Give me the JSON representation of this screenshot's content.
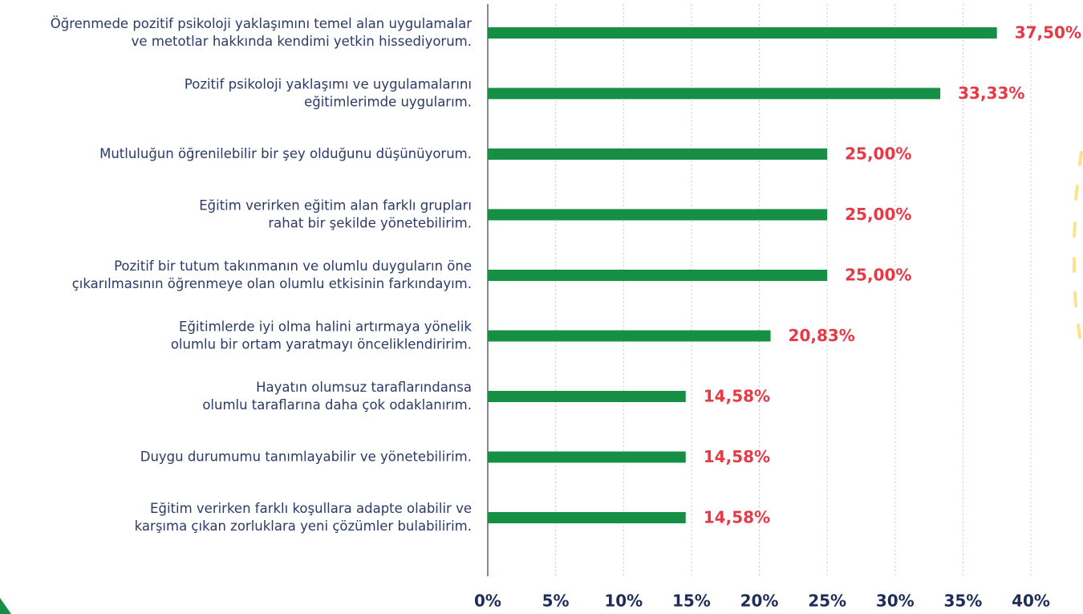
{
  "chart_data": {
    "type": "bar",
    "orientation": "horizontal",
    "categories": [
      "Öğrenmede pozitif psikoloji yaklaşımını temel alan uygulamalar\nve metotlar hakkında kendimi yetkin hissediyorum.",
      "Pozitif psikoloji yaklaşımı ve uygulamalarını\neğitimlerimde uygularım.",
      "Mutluluğun öğrenilebilir bir şey olduğunu düşünüyorum.",
      "Eğitim verirken eğitim alan farklı grupları\nrahat bir şekilde yönetebilirim.",
      "Pozitif bir tutum takınmanın ve olumlu duyguların öne\nçıkarılmasının öğrenmeye olan olumlu etkisinin farkındayım.",
      "Eğitimlerde iyi olma halini artırmaya yönelik\nolumlu bir ortam yaratmayı önceliklendiririm.",
      "Hayatın olumsuz taraflarındansa\nolumlu taraflarına daha çok odaklanırım.",
      "Duygu durumumu tanımlayabilir ve yönetebilirim.",
      "Eğitim verirken farklı koşullara adapte olabilir ve\nkarşıma çıkan zorluklara yeni çözümler bulabilirim."
    ],
    "values": [
      37.5,
      33.33,
      25,
      25,
      25,
      20.83,
      14.58,
      14.58,
      14.58
    ],
    "value_labels": [
      "37,50%",
      "33,33%",
      "25,00%",
      "25,00%",
      "25,00%",
      "20,83%",
      "14,58%",
      "14,58%",
      "14,58%"
    ],
    "color": "#168f45",
    "xlim": [
      0,
      40
    ],
    "xticks": [
      {
        "value": 0,
        "label": "0%"
      },
      {
        "value": 5,
        "label": "5%"
      },
      {
        "value": 10,
        "label": "10%"
      },
      {
        "value": 15,
        "label": "15%"
      },
      {
        "value": 20,
        "label": "20%"
      },
      {
        "value": 25,
        "label": "25%"
      },
      {
        "value": 30,
        "label": "30%"
      },
      {
        "value": 35,
        "label": "35%"
      },
      {
        "value": 40,
        "label": "40%"
      }
    ],
    "grid": true
  }
}
